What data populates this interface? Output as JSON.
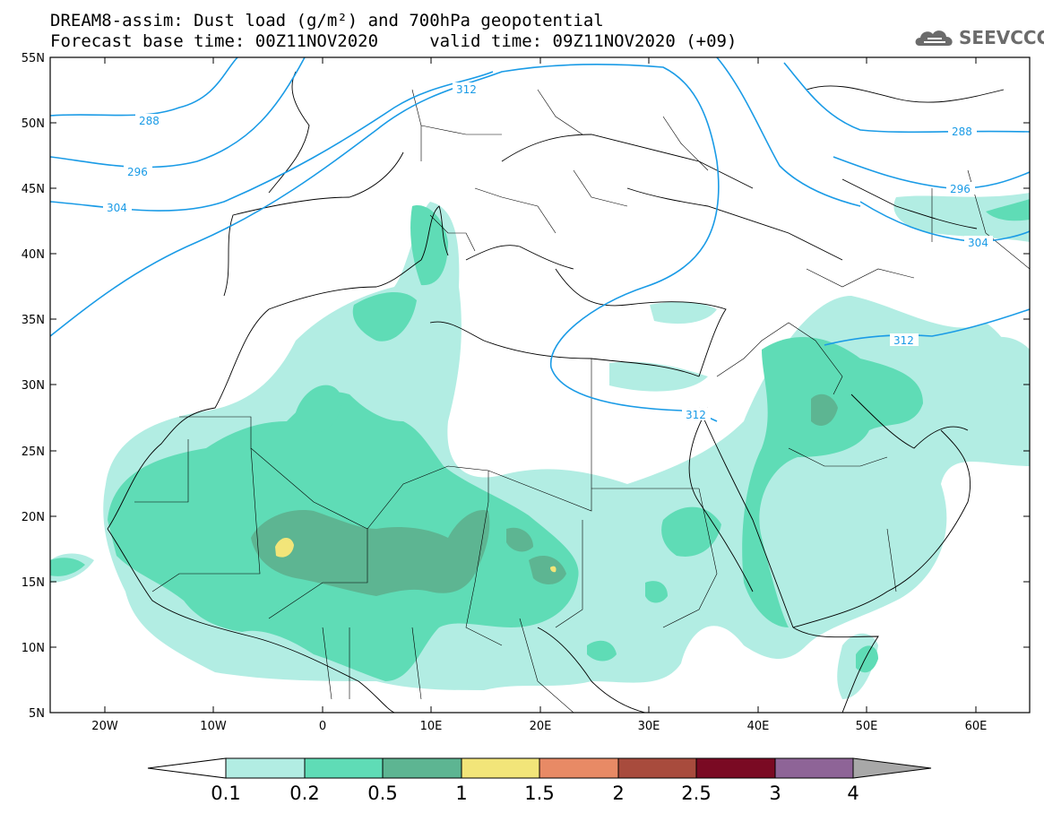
{
  "header": {
    "line1": "DREAM8-assim: Dust load (g/m²) and 700hPa geopotential",
    "line2": "Forecast base time: 00Z11NOV2020     valid time: 09Z11NOV2020 (+09)"
  },
  "logo": {
    "text": "SEEVCCC",
    "icon": "cloud-icon",
    "color": "#6b6b6b"
  },
  "map": {
    "lat_labels": [
      "55N",
      "50N",
      "45N",
      "40N",
      "35N",
      "30N",
      "25N",
      "20N",
      "15N",
      "10N",
      "5N"
    ],
    "lon_labels": [
      "20W",
      "10W",
      "0",
      "10E",
      "20E",
      "30E",
      "40E",
      "50E",
      "60E"
    ],
    "lon_range": [
      -25,
      65
    ],
    "lat_range": [
      5,
      55
    ],
    "contour_color": "#1a9be6",
    "contour_labels": [
      "288",
      "296",
      "304",
      "312",
      "312",
      "312",
      "288",
      "296",
      "304"
    ]
  },
  "colorbar": {
    "labels": [
      "0.1",
      "0.2",
      "0.5",
      "1",
      "1.5",
      "2",
      "2.5",
      "3",
      "4"
    ],
    "colors": [
      "#b2ede3",
      "#5fdcb6",
      "#5db592",
      "#f2e579",
      "#e88a65",
      "#a84b3d",
      "#7a0a23",
      "#8e6497",
      "#a8a8a8"
    ]
  }
}
